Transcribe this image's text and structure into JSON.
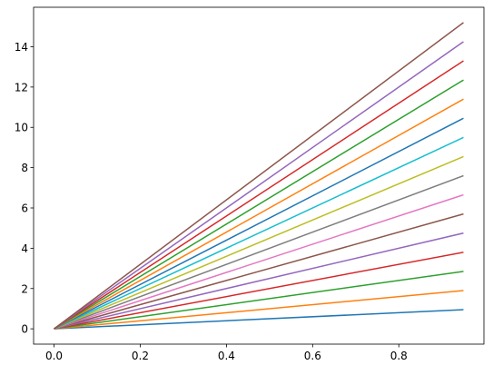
{
  "chart_data": {
    "type": "line",
    "x": [
      0,
      0.95
    ],
    "series": [
      {
        "color": "#1f77b4",
        "values": [
          0,
          0.95
        ]
      },
      {
        "color": "#ff7f0e",
        "values": [
          0,
          1.9
        ]
      },
      {
        "color": "#2ca02c",
        "values": [
          0,
          2.85
        ]
      },
      {
        "color": "#d62728",
        "values": [
          0,
          3.8
        ]
      },
      {
        "color": "#9467bd",
        "values": [
          0,
          4.75
        ]
      },
      {
        "color": "#8c564b",
        "values": [
          0,
          5.7
        ]
      },
      {
        "color": "#e377c2",
        "values": [
          0,
          6.65
        ]
      },
      {
        "color": "#7f7f7f",
        "values": [
          0,
          7.6
        ]
      },
      {
        "color": "#bcbd22",
        "values": [
          0,
          8.55
        ]
      },
      {
        "color": "#17becf",
        "values": [
          0,
          9.5
        ]
      },
      {
        "color": "#1f77b4",
        "values": [
          0,
          10.45
        ]
      },
      {
        "color": "#ff7f0e",
        "values": [
          0,
          11.4
        ]
      },
      {
        "color": "#2ca02c",
        "values": [
          0,
          12.35
        ]
      },
      {
        "color": "#d62728",
        "values": [
          0,
          13.3
        ]
      },
      {
        "color": "#9467bd",
        "values": [
          0,
          14.25
        ]
      },
      {
        "color": "#8c564b",
        "values": [
          0,
          15.2
        ]
      }
    ],
    "xlim": [
      -0.0475,
      0.9975
    ],
    "ylim": [
      -0.76,
      15.96
    ],
    "xticks": [
      {
        "value": 0,
        "label": "0.0"
      },
      0.2,
      0.4,
      0.6,
      0.8
    ],
    "yticks": [
      0,
      2,
      4,
      6,
      8,
      10,
      12,
      14
    ],
    "grid": false
  }
}
